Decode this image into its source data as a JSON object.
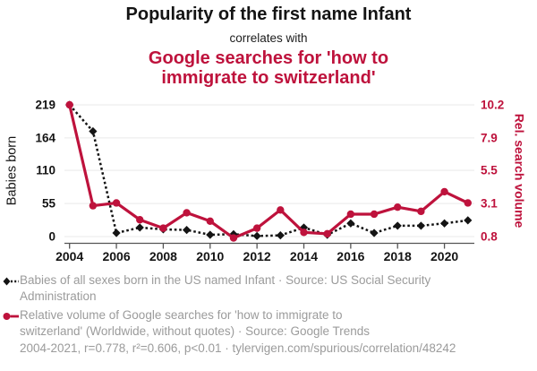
{
  "header": {
    "title": "Popularity of the first name Infant",
    "subtitle": "correlates with",
    "title2_line1": "Google searches for 'how to",
    "title2_line2": "immigrate to switzerland'"
  },
  "colors": {
    "accent_red": "#be123c",
    "series_black": "#141414",
    "grid": "#e9e9e9",
    "axis": "#555555",
    "tick_text": "#141414",
    "muted_text": "#9b9b9b"
  },
  "chart_data": {
    "type": "line",
    "x": [
      2004,
      2005,
      2006,
      2007,
      2008,
      2009,
      2010,
      2011,
      2012,
      2013,
      2014,
      2015,
      2016,
      2017,
      2018,
      2019,
      2020,
      2021
    ],
    "series": [
      {
        "name": "Babies of all sexes born in the US named Infant",
        "axis": "left",
        "style": "dashed",
        "marker": "diamond",
        "values": [
          219,
          175,
          6,
          15,
          12,
          11,
          3,
          4,
          1,
          2,
          15,
          3,
          22,
          6,
          18,
          18,
          22,
          27
        ]
      },
      {
        "name": "Relative volume of Google searches for 'how to immigrate to switzerland'",
        "axis": "right",
        "style": "solid",
        "marker": "circle",
        "values": [
          10.2,
          3.0,
          3.2,
          2.0,
          1.4,
          2.5,
          1.9,
          0.7,
          1.4,
          2.7,
          1.1,
          1.0,
          2.4,
          2.4,
          2.9,
          2.6,
          4.0,
          3.2
        ]
      }
    ],
    "left_axis": {
      "label": "Babies born",
      "ticks": [
        0,
        55,
        110,
        164,
        219
      ],
      "tick_labels": [
        "0",
        "55",
        "110",
        "164",
        "219"
      ],
      "range": [
        0,
        219
      ]
    },
    "right_axis": {
      "label": "Rel. search volume",
      "ticks": [
        0.8,
        3.1,
        5.5,
        7.9,
        10.2
      ],
      "tick_labels": [
        "0.8",
        "3.1",
        "5.5",
        "7.9",
        "10.2"
      ],
      "range": [
        0.8,
        10.2
      ]
    },
    "x_axis": {
      "tick_years": [
        2004,
        2006,
        2008,
        2010,
        2012,
        2014,
        2016,
        2018,
        2020
      ],
      "range": [
        2004,
        2021
      ]
    },
    "grid": "horizontal",
    "legend_position": "bottom"
  },
  "legend": {
    "items": [
      {
        "icon": "diamond-dashed-swatch",
        "lines": [
          "Babies of all sexes born in the US named Infant · Source: US Social Security",
          "Administration"
        ]
      },
      {
        "icon": "circle-solid-swatch",
        "lines": [
          "Relative volume of Google searches for 'how to immigrate to",
          "switzerland' (Worldwide, without quotes) · Source: Google Trends"
        ]
      }
    ]
  },
  "footer": {
    "text": "2004-2021, r=0.778, r²=0.606, p<0.01 · tylervigen.com/spurious/correlation/48242"
  }
}
